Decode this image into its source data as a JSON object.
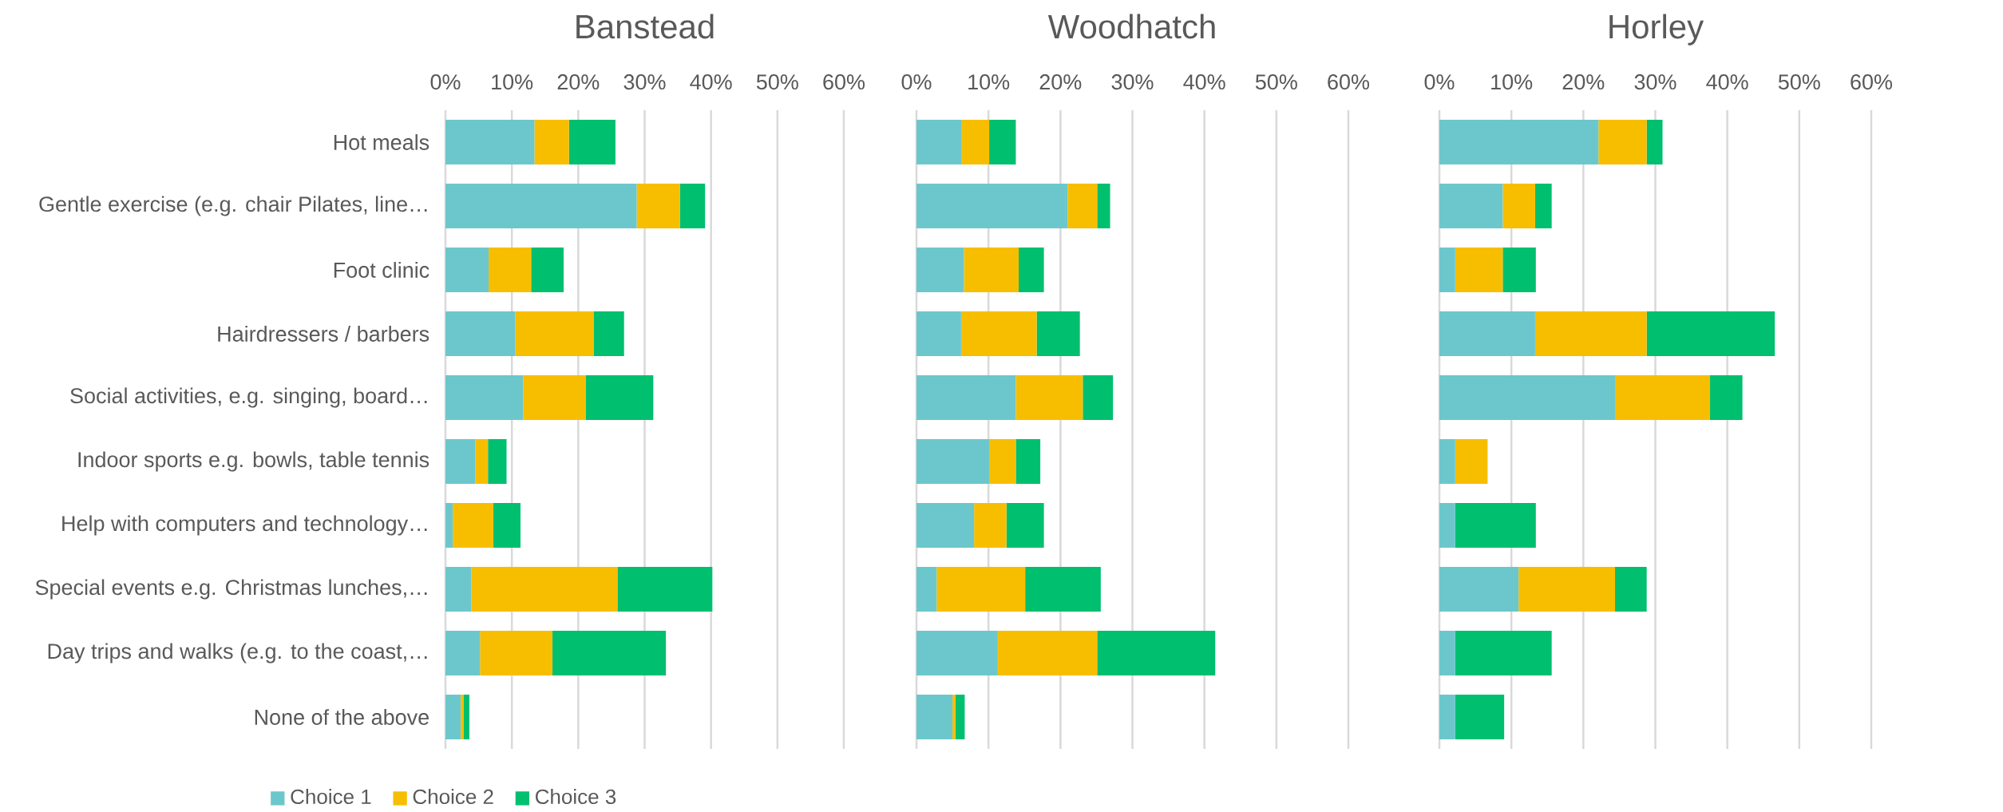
{
  "chart_data": [
    {
      "type": "bar",
      "orientation": "horizontal",
      "stacked": true,
      "title": "Banstead",
      "categories": [
        "Hot meals",
        "Gentle exercise (e.g. chair Pilates, line…",
        "Foot clinic",
        "Hairdressers / barbers",
        "Social activities, e.g. singing, board…",
        "Indoor sports e.g. bowls, table tennis",
        "Help with computers and technology…",
        "Special events e.g. Christmas lunches,…",
        "Day trips and walks (e.g. to the coast,…",
        "None of the above"
      ],
      "series": [
        {
          "name": "Choice 1",
          "color": "#6cc7cc",
          "values": [
            13.4,
            28.8,
            6.5,
            10.5,
            11.7,
            4.5,
            1.1,
            3.9,
            5.2,
            2.3
          ]
        },
        {
          "name": "Choice 2",
          "color": "#f7be00",
          "values": [
            5.2,
            6.5,
            6.4,
            11.8,
            9.4,
            1.9,
            6.1,
            22.0,
            10.9,
            0.4
          ]
        },
        {
          "name": "Choice 3",
          "color": "#00bf6f",
          "values": [
            7.0,
            3.8,
            4.9,
            4.6,
            10.2,
            2.8,
            4.1,
            14.3,
            17.1,
            0.9
          ]
        }
      ],
      "xlim": [
        0,
        60
      ],
      "xticks": [
        {
          "value": 0,
          "label": "0%"
        },
        {
          "value": 10,
          "label": "10%"
        },
        {
          "value": 20,
          "label": "20%"
        },
        {
          "value": 30,
          "label": "30%"
        },
        {
          "value": 40,
          "label": "40%"
        },
        {
          "value": 50,
          "label": "50%"
        },
        {
          "value": 60,
          "label": "60%"
        }
      ],
      "grid": "x",
      "legend": "bottom"
    },
    {
      "type": "bar",
      "orientation": "horizontal",
      "stacked": true,
      "title": "Woodhatch",
      "categories": [
        null,
        null,
        null,
        null,
        null,
        null,
        null,
        null,
        null,
        null
      ],
      "series": [
        {
          "color": "#6cc7cc",
          "values": [
            6.3,
            21.0,
            6.6,
            6.2,
            13.8,
            10.1,
            8.0,
            2.8,
            11.3,
            5.0
          ]
        },
        {
          "color": "#f7be00",
          "values": [
            3.8,
            4.1,
            7.6,
            10.5,
            9.3,
            3.7,
            4.5,
            12.3,
            13.8,
            0.4
          ]
        },
        {
          "color": "#00bf6f",
          "values": [
            3.7,
            1.8,
            3.5,
            6.0,
            4.2,
            3.4,
            5.2,
            10.5,
            16.4,
            1.3
          ]
        }
      ],
      "xlim": [
        0,
        60
      ],
      "xticks": [
        {
          "value": 0,
          "label": "0%"
        },
        {
          "value": 10,
          "label": "10%"
        },
        {
          "value": 20,
          "label": "20%"
        },
        {
          "value": 30,
          "label": "30%"
        },
        {
          "value": 40,
          "label": "40%"
        },
        {
          "value": 50,
          "label": "50%"
        },
        {
          "value": 60,
          "label": "60%"
        }
      ],
      "grid": "x",
      "tick_labels": "x"
    },
    {
      "type": "bar",
      "orientation": "horizontal",
      "stacked": true,
      "title": "Horley",
      "categories": [
        null,
        null,
        null,
        null,
        null,
        null,
        null,
        null,
        null,
        null
      ],
      "series": [
        {
          "color": "#6cc7cc",
          "values": [
            22.1,
            8.8,
            2.2,
            13.3,
            24.4,
            2.2,
            2.2,
            11.0,
            2.2,
            2.2
          ]
        },
        {
          "color": "#f7be00",
          "values": [
            6.7,
            4.5,
            6.6,
            15.5,
            13.2,
            4.5,
            0,
            13.4,
            0,
            0
          ]
        },
        {
          "color": "#00bf6f",
          "values": [
            2.2,
            2.3,
            4.6,
            17.8,
            4.5,
            0,
            11.2,
            4.4,
            13.4,
            6.8
          ]
        }
      ],
      "xlim": [
        0,
        60
      ],
      "xticks": [
        {
          "value": 0,
          "label": "0%"
        },
        {
          "value": 10,
          "label": "10%"
        },
        {
          "value": 20,
          "label": "20%"
        },
        {
          "value": 30,
          "label": "30%"
        },
        {
          "value": 40,
          "label": "40%"
        },
        {
          "value": 50,
          "label": "50%"
        },
        {
          "value": 60,
          "label": "60%"
        }
      ],
      "grid": "x",
      "tick_labels": "x"
    }
  ]
}
